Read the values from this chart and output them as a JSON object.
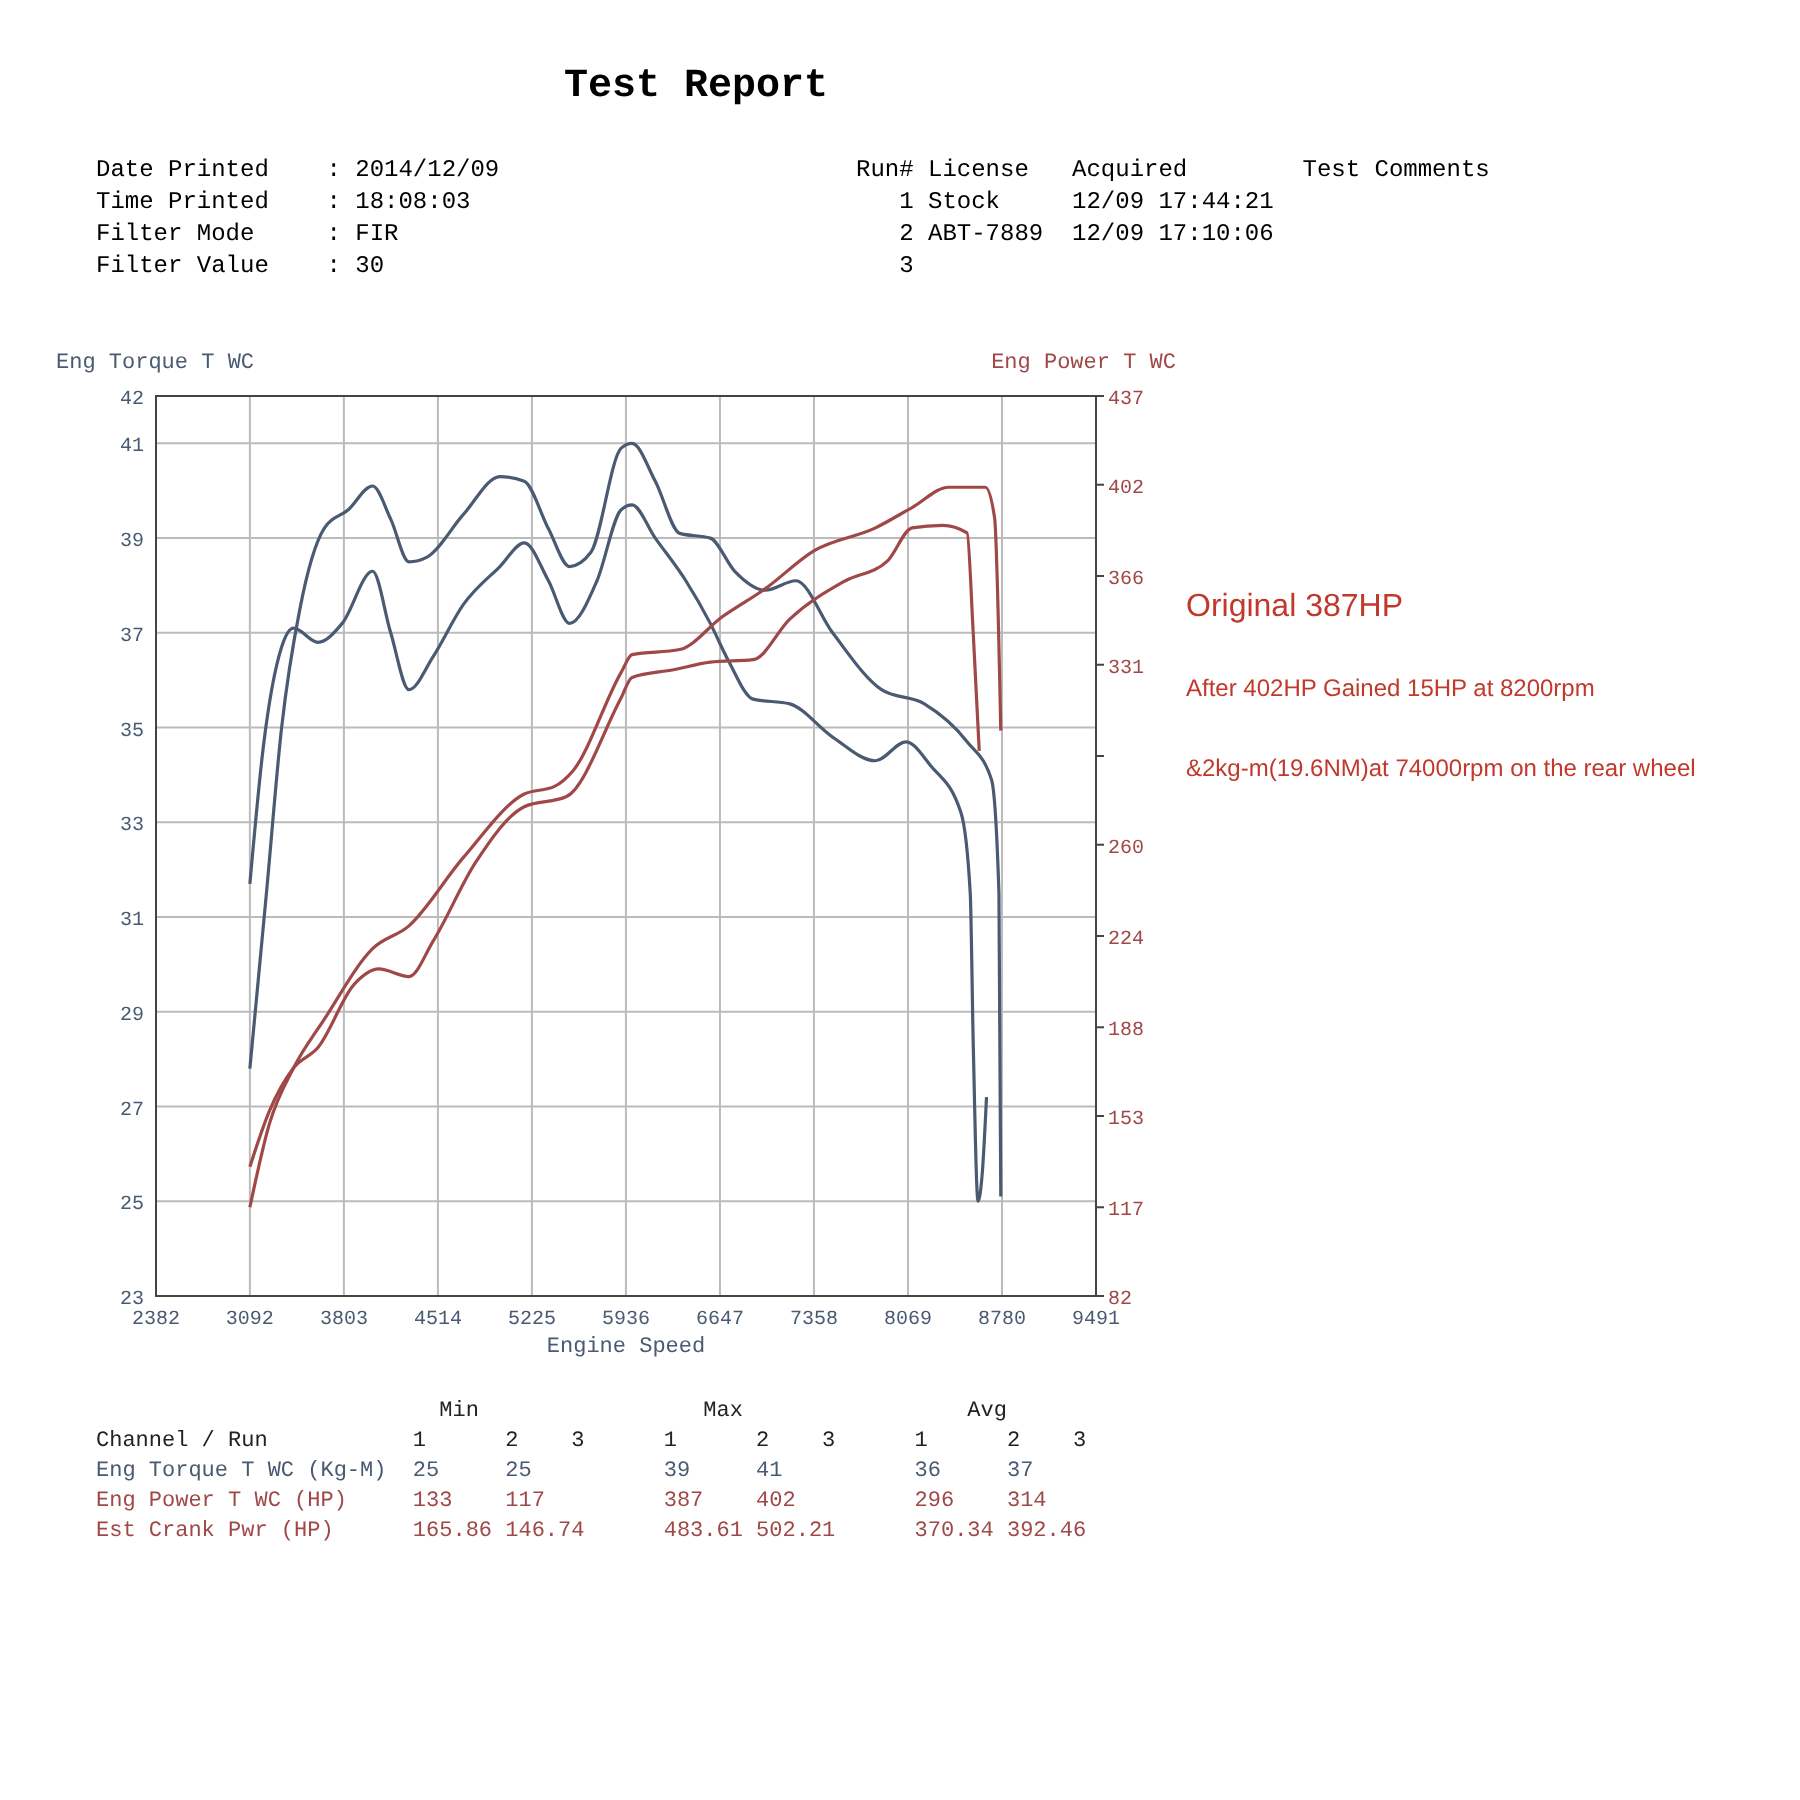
{
  "chart_data": {
    "type": "line",
    "title": "Test Report",
    "xlabel": "Engine Speed",
    "ylabel": "Eng Torque T WC",
    "y2label": "Eng Power T WC",
    "annotations": [
      "Date Printed    : 2014/12/09",
      "Time Printed    : 18:08:03",
      "Filter Mode     : FIR",
      "Filter Value    : 30",
      "Run# License   Acquired        Test Comments",
      "   1 Stock     12/09 17:44:21",
      "   2 ABT-7889  12/09 17:10:06",
      "   3",
      "Original  387HP",
      "After 402HP Gained 15HP at 8200rpm",
      "&2kg-m(19.6NM)at 74000rpm  on the rear wheel",
      "                          Min                 Max                 Avg",
      "Channel / Run           1      2    3      1      2    3      1      2    3",
      "Eng Torque T WC (Kg-M)  25     25          39     41          36     37",
      "Eng Power T WC (HP)     133    117         387    402         296    314",
      "Est Crank Pwr (HP)      165.86 146.74      483.61 502.21      370.34 392.46"
    ],
    "xlim": [
      2382,
      9491
    ],
    "xticks": [
      2382,
      3092,
      3803,
      4514,
      5225,
      5936,
      6647,
      7358,
      8069,
      8780,
      9491
    ],
    "ylim": [
      23,
      42
    ],
    "yticks": [
      23,
      25,
      27,
      29,
      31,
      33,
      35,
      37,
      39,
      41,
      42
    ],
    "y2lim": [
      82,
      437
    ],
    "y2ticks": [
      82,
      117,
      153,
      188,
      224,
      260,
      {
        "value": 295,
        "label": null
      },
      331,
      366,
      402,
      437
    ],
    "grid": true,
    "line_style": "solid",
    "marker": "none",
    "series": [
      {
        "color": "#4a5a72",
        "x": [
          3092,
          3194,
          3332,
          3423,
          3607,
          3790,
          4020,
          4157,
          4295,
          4478,
          4707,
          4983,
          5167,
          5350,
          5510,
          5717,
          5900,
          5982,
          6158,
          6389,
          6574,
          6713,
          6898,
          7175,
          7499,
          7823,
          8054,
          8239,
          8470,
          8540,
          8562,
          8599,
          8631,
          8663
        ],
        "values": [
          31.7,
          34.6,
          36.7,
          37.1,
          36.8,
          37.2,
          38.3,
          37.0,
          35.8,
          36.5,
          37.6,
          38.4,
          38.9,
          38.1,
          37.2,
          38.1,
          39.6,
          39.7,
          39.0,
          38.1,
          37.2,
          36.4,
          35.6,
          35.5,
          34.8,
          34.3,
          34.7,
          34.2,
          33.2,
          31.5,
          28.4,
          25.0,
          25.6,
          27.2
        ]
      },
      {
        "color": "#4a5a72",
        "x": [
          3092,
          3217,
          3332,
          3470,
          3653,
          3836,
          4020,
          4157,
          4295,
          4432,
          4707,
          4983,
          5167,
          5350,
          5510,
          5671,
          5900,
          5982,
          6158,
          6343,
          6574,
          6759,
          6990,
          7221,
          7499,
          7869,
          8193,
          8516,
          8701,
          8757,
          8771
        ],
        "values": [
          27.8,
          31.5,
          35.0,
          37.5,
          39.2,
          39.6,
          40.1,
          39.4,
          38.5,
          38.6,
          39.5,
          40.3,
          40.2,
          39.2,
          38.4,
          38.7,
          40.9,
          41.0,
          40.2,
          39.1,
          39.0,
          38.3,
          37.9,
          38.1,
          37.0,
          35.8,
          35.5,
          34.7,
          33.9,
          31.5,
          25.1
        ]
      },
      {
        "color": "#a04848",
        "axis": "y2",
        "x": [
          3092,
          3240,
          3423,
          3607,
          3882,
          4066,
          4295,
          4478,
          4799,
          5167,
          5487,
          5900,
          5982,
          6296,
          6574,
          6898,
          7175,
          7591,
          7915,
          8100,
          8331,
          8516,
          8562,
          8608
        ],
        "values": [
          133,
          155,
          172,
          180,
          205,
          211,
          208,
          222,
          253,
          275,
          279,
          318,
          326,
          329,
          332,
          333,
          349,
          364,
          372,
          385,
          386,
          383,
          344,
          297
        ]
      },
      {
        "color": "#a04848",
        "axis": "y2",
        "x": [
          3092,
          3240,
          3423,
          3653,
          4020,
          4295,
          4707,
          5167,
          5396,
          5533,
          5900,
          5982,
          6343,
          6667,
          6990,
          7360,
          7823,
          8100,
          8377,
          8654,
          8724,
          8771
        ],
        "values": [
          117,
          150,
          172,
          191,
          219,
          228,
          255,
          280,
          283,
          289,
          328,
          335,
          337,
          350,
          361,
          376,
          385,
          393,
          401,
          401,
          389,
          305
        ]
      }
    ]
  }
}
